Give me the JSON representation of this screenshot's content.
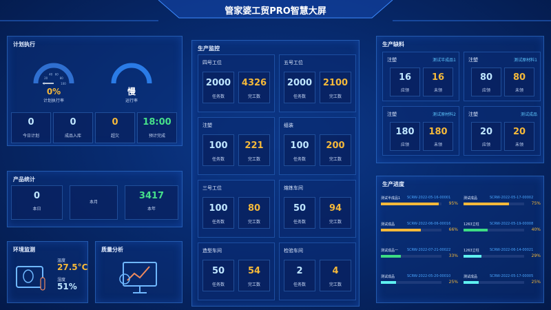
{
  "header": {
    "title": "管家婆工贸PRO智慧大屏"
  },
  "plan": {
    "title": "计划执行",
    "gauges": [
      {
        "value": 0,
        "label": "0%",
        "caption": "计划执行率",
        "ticks": [
          0,
          20,
          40,
          60,
          80,
          100
        ]
      },
      {
        "label": "慢",
        "caption": "运行率"
      }
    ],
    "stats": [
      {
        "value": 0,
        "label": "今日计划"
      },
      {
        "value": 0,
        "label": "成品入库"
      },
      {
        "value": 0,
        "label": "超欠"
      },
      {
        "value": "18:00",
        "label": "预计完成"
      }
    ]
  },
  "products": {
    "title": "产品统计",
    "stats": [
      {
        "value": 0,
        "label": "本日"
      },
      {
        "label": "本月"
      },
      {
        "value": 3417,
        "label": "本年"
      }
    ]
  },
  "env": {
    "title": "环境监测",
    "temp_label": "温度",
    "temp": "27.5°C",
    "hum_label": "湿度",
    "hum": "51%"
  },
  "quality": {
    "title": "质量分析"
  },
  "monitor": {
    "title": "生产监控",
    "task_label": "任务数",
    "done_label": "完工数",
    "cards": [
      {
        "name": "四号工位",
        "tasks": 2000,
        "done": 4326
      },
      {
        "name": "五号工位",
        "tasks": 2000,
        "done": 2100
      },
      {
        "name": "注塑",
        "tasks": 100,
        "done": 221
      },
      {
        "name": "组装",
        "tasks": 100,
        "done": 200
      },
      {
        "name": "三号工位",
        "tasks": 100,
        "done": 80
      },
      {
        "name": "熔炼车间",
        "tasks": 50,
        "done": 94
      },
      {
        "name": "造型车间",
        "tasks": 50,
        "done": 54
      },
      {
        "name": "检验车间",
        "tasks": 2,
        "done": 4
      }
    ]
  },
  "shortage": {
    "title": "生产缺料",
    "need_label": "应领",
    "pending_label": "未领",
    "cards": [
      {
        "process": "注塑",
        "item": "测试半成品1",
        "need": 16,
        "pending": 16
      },
      {
        "process": "注塑",
        "item": "测试原材料1",
        "need": 80,
        "pending": 80
      },
      {
        "process": "注塑",
        "item": "测试原材料2",
        "need": 180,
        "pending": 180
      },
      {
        "process": "注塑",
        "item": "测试成品",
        "need": 20,
        "pending": 20
      }
    ]
  },
  "progress": {
    "title": "生产进度",
    "items": [
      {
        "name": "测试半成品1",
        "code": "SCRW-2022-05-16-00001",
        "value": 95,
        "value_label": "95%",
        "color": "#f5b93a"
      },
      {
        "name": "测试成品",
        "code": "SCRW-2022-05-17-00002",
        "value": 75,
        "value_label": "75%",
        "color": "#f5b93a"
      },
      {
        "name": "测试成品",
        "code": "SCRW-2022-06-06-00016",
        "value": 66,
        "value_label": "66%",
        "color": "#f5b93a"
      },
      {
        "name": "1263立柱",
        "code": "SCRW-2022-05-19-00008",
        "value": 40,
        "value_label": "40%",
        "color": "#3ddc84"
      },
      {
        "name": "测试成品一",
        "code": "SCRW-2022-07-21-00022",
        "value": 33,
        "value_label": "33%",
        "color": "#3ddc84"
      },
      {
        "name": "1263立柱",
        "code": "SCRW-2022-06-14-00021",
        "value": 29,
        "value_label": "29%",
        "color": "#5ff0f0"
      },
      {
        "name": "测试成品",
        "code": "SCRW-2022-05-20-00010",
        "value": 25,
        "value_label": "25%",
        "color": "#5ff0f0"
      },
      {
        "name": "测试成品",
        "code": "SCRW-2022-05-17-00005",
        "value": 25,
        "value_label": "25%",
        "color": "#5ff0f0"
      }
    ]
  }
}
